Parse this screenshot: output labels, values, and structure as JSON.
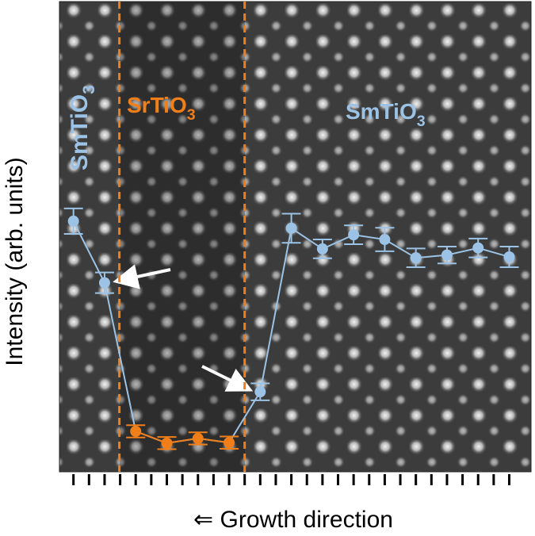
{
  "chart_data": {
    "type": "line",
    "y_label": "Intensity (arb. units)",
    "x_label": "⇐ Growth direction",
    "x": [
      0,
      2,
      4,
      6,
      8,
      10,
      12,
      14,
      16,
      18,
      20,
      22,
      24,
      26,
      28
    ],
    "values": [
      53.3,
      40.2,
      8.6,
      6.1,
      7.1,
      6.2,
      17.0,
      51.8,
      47.4,
      50.4,
      49.4,
      45.5,
      46.1,
      47.6,
      45.7
    ],
    "errors": [
      2.7,
      2.2,
      1.3,
      1.3,
      1.3,
      1.3,
      1.8,
      3.1,
      2.0,
      2.0,
      2.5,
      2.0,
      1.8,
      2.0,
      2.2
    ],
    "line_color": "#9cc3e6",
    "point_colors": [
      "#9cc3e6",
      "#9cc3e6",
      "#f07f1a",
      "#f07f1a",
      "#f07f1a",
      "#f07f1a",
      "#9cc3e6",
      "#9cc3e6",
      "#9cc3e6",
      "#9cc3e6",
      "#9cc3e6",
      "#9cc3e6",
      "#9cc3e6",
      "#9cc3e6",
      "#9cc3e6"
    ],
    "boundaries": [
      2.95,
      11.0
    ],
    "boundary_color": "#f07f1a",
    "xlim": [
      -0.9,
      29.4
    ],
    "ylim": [
      0,
      100
    ],
    "xticks": [
      0,
      1,
      2,
      3,
      4,
      5,
      6,
      7,
      8,
      9,
      10,
      11,
      12,
      13,
      14,
      15,
      16,
      17,
      18,
      19,
      20,
      21,
      22,
      23,
      24,
      25,
      26,
      27,
      28
    ],
    "annotations": [
      {
        "text": "SmTiO",
        "sub": "3",
        "color": "#9cc3e6"
      },
      {
        "text": "SrTiO",
        "sub": "3",
        "color": "#f07f1a"
      },
      {
        "text": "SmTiO",
        "sub": "3",
        "color": "#9cc3e6"
      }
    ]
  }
}
